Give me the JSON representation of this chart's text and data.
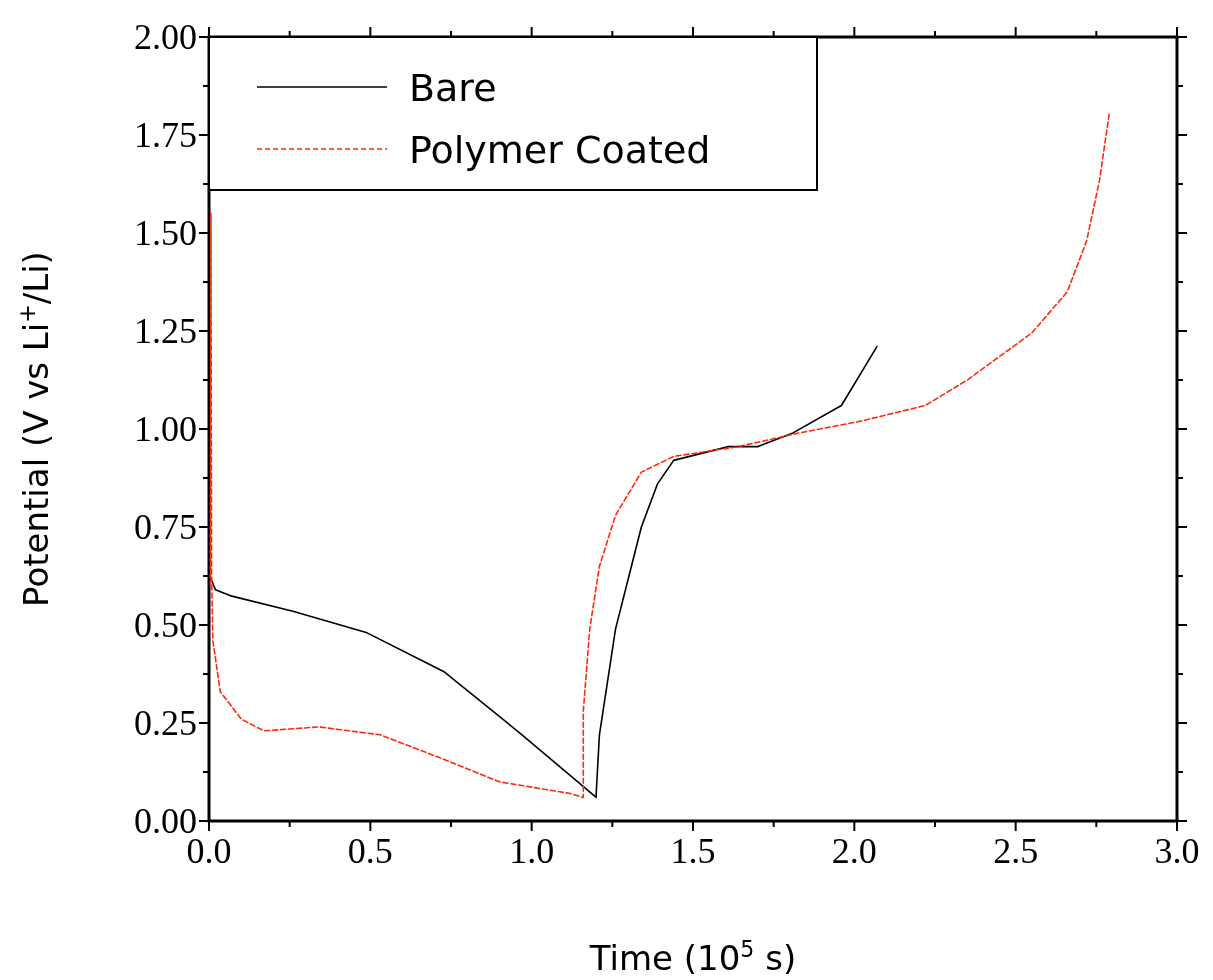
{
  "chart_data": {
    "type": "line",
    "xlabel": "Time (10$^{5}$ s)",
    "ylabel": "Potential (V vs Li$^{+}$/Li)",
    "xlim": [
      0,
      3
    ],
    "ylim": [
      0,
      2
    ],
    "xticks": [
      {
        "value": 0,
        "label": "0.0"
      },
      {
        "value": 0.25,
        "label": null
      },
      {
        "value": 0.5,
        "label": "0.5"
      },
      {
        "value": 0.75,
        "label": null
      },
      {
        "value": 1,
        "label": "1.0"
      },
      {
        "value": 1.25,
        "label": null
      },
      {
        "value": 1.5,
        "label": "1.5"
      },
      {
        "value": 1.75,
        "label": null
      },
      {
        "value": 2,
        "label": "2.0"
      },
      {
        "value": 2.25,
        "label": null
      },
      {
        "value": 2.5,
        "label": "2.5"
      },
      {
        "value": 2.75,
        "label": null
      },
      {
        "value": 3,
        "label": "3.0"
      }
    ],
    "yticks": [
      {
        "value": 0,
        "label": "0.00"
      },
      {
        "value": 0.125,
        "label": null
      },
      {
        "value": 0.25,
        "label": "0.25"
      },
      {
        "value": 0.375,
        "label": null
      },
      {
        "value": 0.5,
        "label": "0.50"
      },
      {
        "value": 0.625,
        "label": null
      },
      {
        "value": 0.75,
        "label": "0.75"
      },
      {
        "value": 0.875,
        "label": null
      },
      {
        "value": 1,
        "label": "1.00"
      },
      {
        "value": 1.125,
        "label": null
      },
      {
        "value": 1.25,
        "label": "1.25"
      },
      {
        "value": 1.375,
        "label": null
      },
      {
        "value": 1.5,
        "label": "1.50"
      },
      {
        "value": 1.625,
        "label": null
      },
      {
        "value": 1.75,
        "label": "1.75"
      },
      {
        "value": 1.875,
        "label": null
      },
      {
        "value": 2,
        "label": "2.00"
      }
    ],
    "grid": false,
    "legend": "top left",
    "marker": "none",
    "series": [
      {
        "name": "Bare",
        "color": "#000000",
        "line_style": "solid",
        "x": [
          0,
          0.02,
          0.065,
          0.26,
          0.49,
          0.73,
          0.97,
          1.2,
          1.2,
          1.21,
          1.26,
          1.34,
          1.39,
          1.44,
          1.61,
          1.7,
          1.81,
          1.96,
          2.07
        ],
        "values": [
          0.63,
          0.59,
          0.575,
          0.535,
          0.48,
          0.38,
          0.22,
          0.06,
          0.07,
          0.22,
          0.49,
          0.75,
          0.86,
          0.92,
          0.955,
          0.955,
          0.99,
          1.06,
          1.21
        ]
      },
      {
        "name": "Polymer Coated",
        "color": "#ff2a0a",
        "line_style": "dashed",
        "x": [
          0.004,
          0.006,
          0.008,
          0.012,
          0.035,
          0.1,
          0.17,
          0.34,
          0.53,
          0.72,
          0.9,
          1.12,
          1.16,
          1.16,
          1.18,
          1.21,
          1.26,
          1.34,
          1.44,
          1.64,
          1.83,
          2.02,
          2.22,
          2.35,
          2.55,
          2.66,
          2.72,
          2.76,
          2.79
        ],
        "values": [
          0.6,
          1.55,
          0.63,
          0.46,
          0.33,
          0.26,
          0.23,
          0.24,
          0.22,
          0.16,
          0.1,
          0.07,
          0.06,
          0.28,
          0.49,
          0.65,
          0.78,
          0.89,
          0.93,
          0.955,
          0.99,
          1.02,
          1.06,
          1.125,
          1.245,
          1.35,
          1.48,
          1.635,
          1.805
        ]
      }
    ]
  }
}
